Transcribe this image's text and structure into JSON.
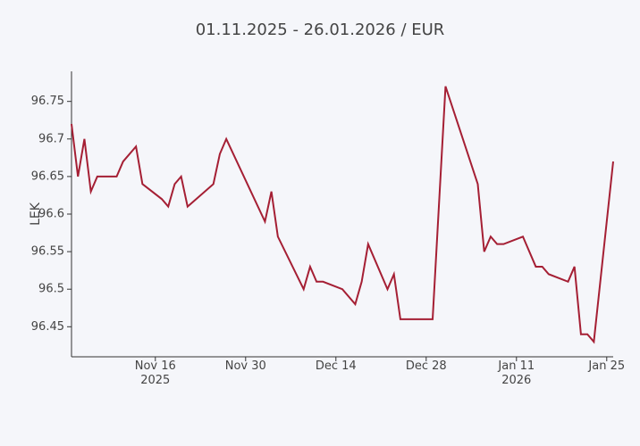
{
  "chart_data": {
    "type": "line",
    "title": "01.11.2025 - 26.01.2026 / EUR",
    "y_label": "LEK",
    "x": [
      "2025-11-03",
      "2025-11-04",
      "2025-11-05",
      "2025-11-06",
      "2025-11-07",
      "2025-11-10",
      "2025-11-11",
      "2025-11-13",
      "2025-11-14",
      "2025-11-17",
      "2025-11-18",
      "2025-11-19",
      "2025-11-20",
      "2025-11-21",
      "2025-11-25",
      "2025-11-26",
      "2025-11-27",
      "2025-12-03",
      "2025-12-04",
      "2025-12-05",
      "2025-12-09",
      "2025-12-10",
      "2025-12-11",
      "2025-12-12",
      "2025-12-15",
      "2025-12-17",
      "2025-12-18",
      "2025-12-19",
      "2025-12-22",
      "2025-12-23",
      "2025-12-24",
      "2025-12-29",
      "2025-12-31",
      "2026-01-05",
      "2026-01-06",
      "2026-01-07",
      "2026-01-08",
      "2026-01-09",
      "2026-01-12",
      "2026-01-14",
      "2026-01-15",
      "2026-01-16",
      "2026-01-19",
      "2026-01-20",
      "2026-01-21",
      "2026-01-22",
      "2026-01-23",
      "2026-01-26"
    ],
    "series": [
      {
        "name": "EUR",
        "color": "#a51f34",
        "values": [
          96.72,
          96.65,
          96.7,
          96.63,
          96.65,
          96.65,
          96.67,
          96.69,
          96.64,
          96.62,
          96.61,
          96.64,
          96.65,
          96.61,
          96.64,
          96.68,
          96.7,
          96.59,
          96.63,
          96.57,
          96.5,
          96.53,
          96.51,
          96.51,
          96.5,
          96.48,
          96.51,
          96.56,
          96.5,
          96.52,
          96.46,
          96.46,
          96.77,
          96.64,
          96.55,
          96.57,
          96.56,
          96.56,
          96.57,
          96.53,
          96.53,
          96.52,
          96.51,
          96.53,
          96.44,
          96.44,
          96.43,
          96.67
        ]
      }
    ],
    "xlim": [
      "2025-11-03",
      "2026-01-26"
    ],
    "xticks": [
      {
        "value": "2025-11-16",
        "label": "Nov 16\n2025"
      },
      {
        "value": "2025-11-30",
        "label": "Nov 30"
      },
      {
        "value": "2025-12-14",
        "label": "Dec 14"
      },
      {
        "value": "2025-12-28",
        "label": "Dec 28"
      },
      {
        "value": "2026-01-11",
        "label": "Jan 11\n2026"
      },
      {
        "value": "2026-01-25",
        "label": "Jan 25"
      }
    ],
    "ylim": [
      96.41,
      96.79
    ],
    "yticks": [
      96.45,
      96.5,
      96.55,
      96.6,
      96.65,
      96.7,
      96.75
    ],
    "grid": false
  }
}
